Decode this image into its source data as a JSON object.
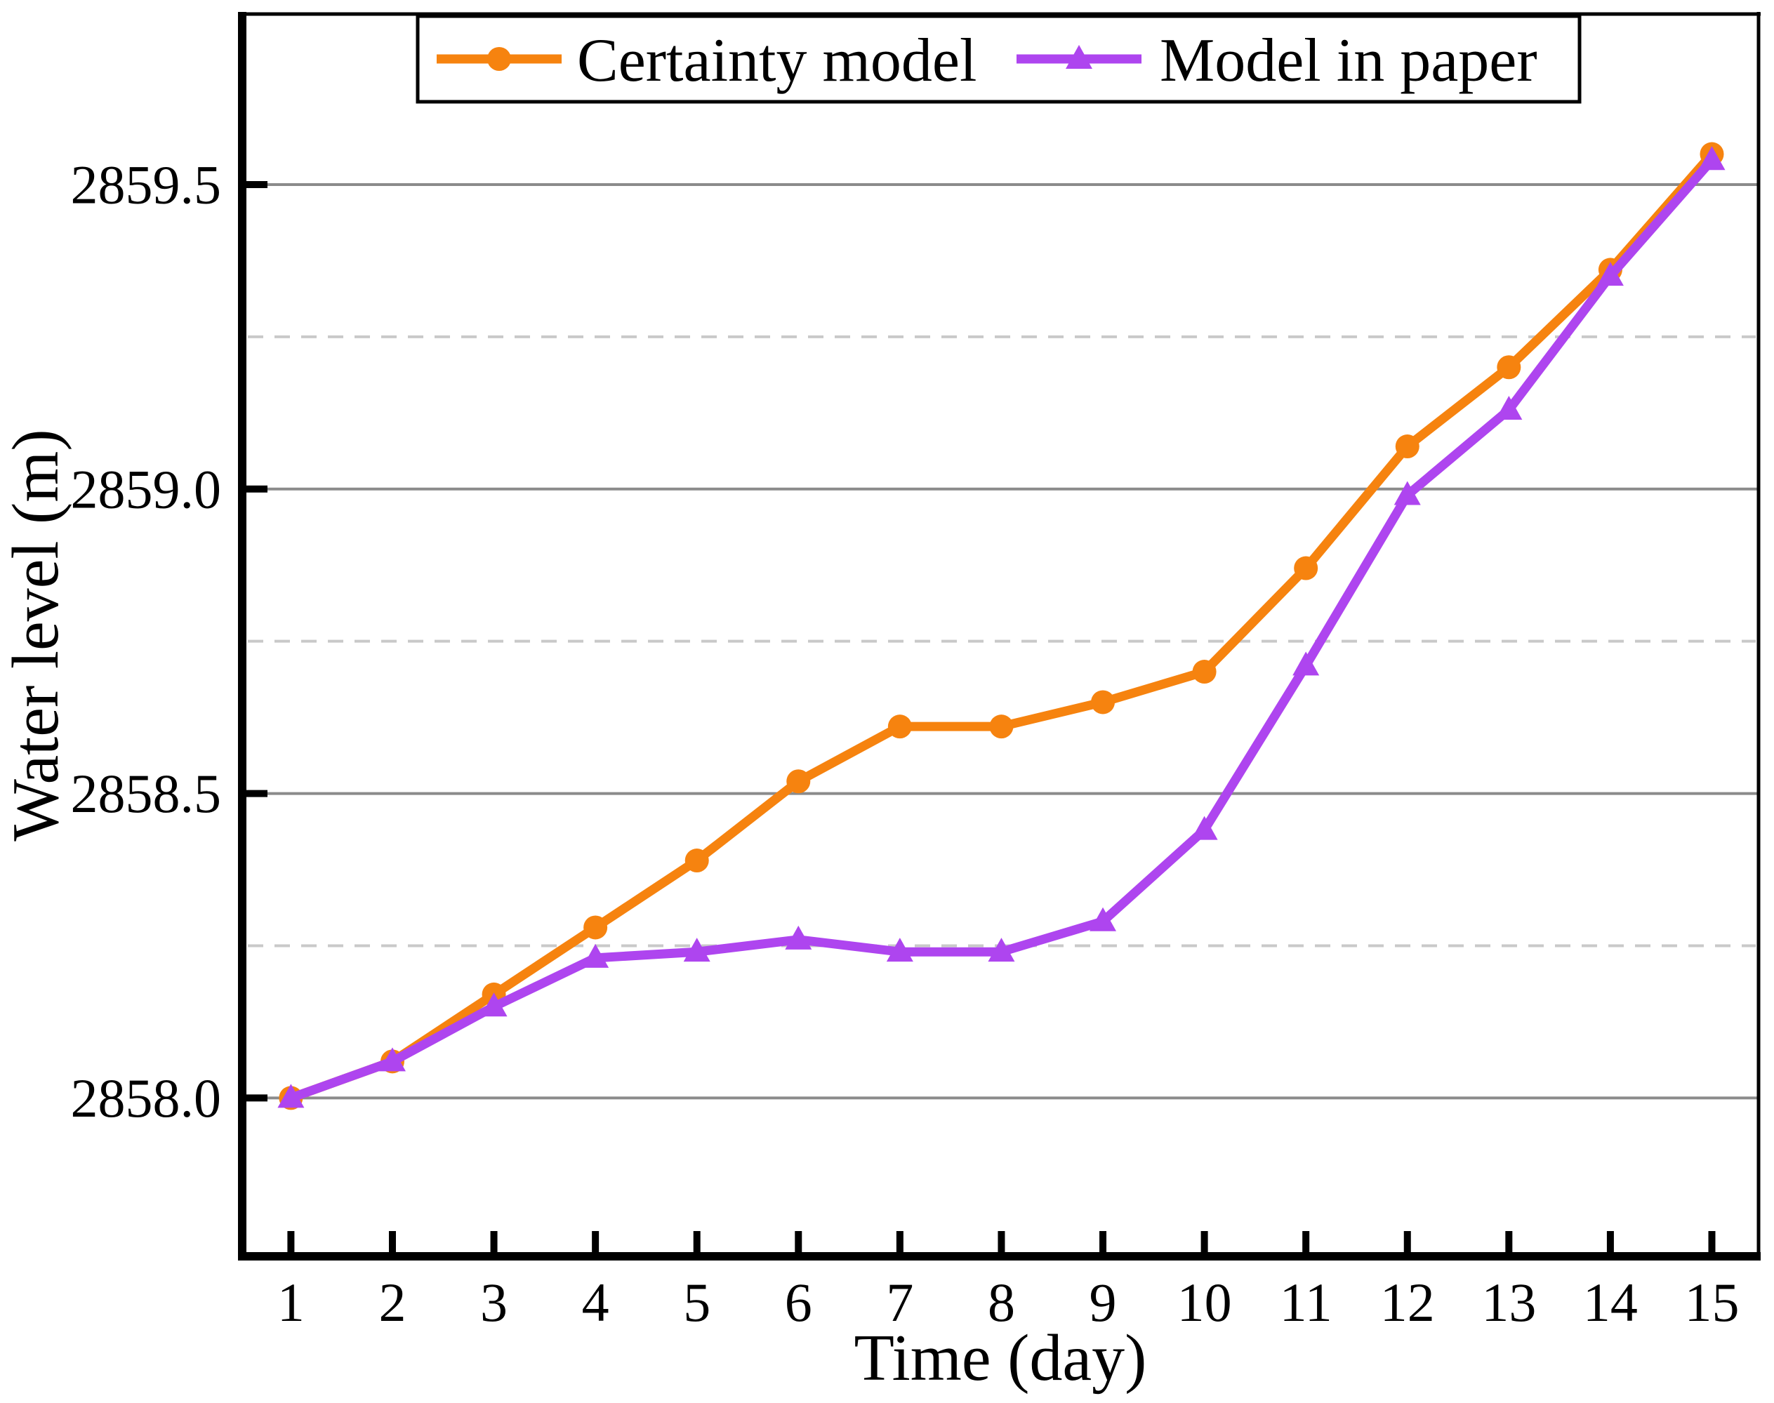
{
  "chart_data": {
    "type": "line",
    "title": "",
    "xlabel": "Time (day)",
    "ylabel": "Water level (m)",
    "x": [
      1,
      2,
      3,
      4,
      5,
      6,
      7,
      8,
      9,
      10,
      11,
      12,
      13,
      14,
      15
    ],
    "x_tick_labels": [
      "1",
      "2",
      "3",
      "4",
      "5",
      "6",
      "7",
      "8",
      "9",
      "10",
      "11",
      "12",
      "13",
      "14",
      "15"
    ],
    "xlim": [
      0.52,
      15.46
    ],
    "ylim": [
      2857.74,
      2859.78
    ],
    "y_major_ticks": [
      2858.0,
      2858.5,
      2859.0,
      2859.5
    ],
    "y_major_tick_labels": [
      "2858.0",
      "2858.5",
      "2859.0",
      "2859.5"
    ],
    "y_minor_dashed_gridlines": [
      2858.25,
      2858.75,
      2859.25
    ],
    "grid": "horizontal-only",
    "legend_position": "top-inside",
    "colors": {
      "solid_gridline": "#8B8B8B",
      "dashed_gridline": "#C9C9C9",
      "axis": "#000000",
      "background": "#FFFFFF"
    },
    "series": [
      {
        "name": "Certainty model",
        "color": "#F6830F",
        "marker": "circle",
        "values": [
          2858.0,
          2858.06,
          2858.17,
          2858.28,
          2858.39,
          2858.52,
          2858.61,
          2858.61,
          2858.65,
          2858.7,
          2858.87,
          2859.07,
          2859.2,
          2859.36,
          2859.55
        ]
      },
      {
        "name": "Model in paper",
        "color": "#AE45EF",
        "marker": "triangle",
        "values": [
          2858.0,
          2858.06,
          2858.15,
          2858.23,
          2858.24,
          2858.26,
          2858.24,
          2858.24,
          2858.29,
          2858.44,
          2858.71,
          2858.99,
          2859.13,
          2859.35,
          2859.54
        ]
      }
    ]
  }
}
